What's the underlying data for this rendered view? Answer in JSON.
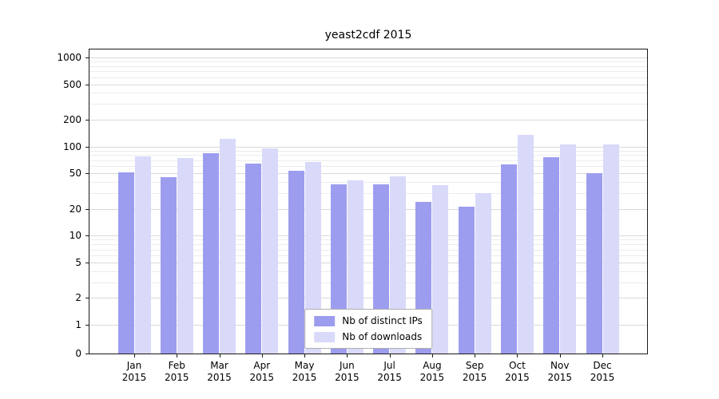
{
  "chart_data": {
    "type": "bar",
    "title": "yeast2cdf 2015",
    "scale": "log",
    "grid": true,
    "legend_position": "lower center",
    "categories": [
      "Jan",
      "Feb",
      "Mar",
      "Apr",
      "May",
      "Jun",
      "Jul",
      "Aug",
      "Sep",
      "Oct",
      "Nov",
      "Dec"
    ],
    "x_sublabel": "2015",
    "y_ticks": [
      0,
      1,
      2,
      5,
      10,
      20,
      50,
      100,
      200,
      500,
      1000
    ],
    "ylim": [
      0,
      1200
    ],
    "series": [
      {
        "name": "Nb of distinct IPs",
        "color": "#9d9df0",
        "values": [
          51,
          45,
          85,
          65,
          54,
          38,
          38,
          24,
          21,
          63,
          76,
          50
        ]
      },
      {
        "name": "Nb of downloads",
        "color": "#d9d9f9",
        "values": [
          78,
          75,
          122,
          95,
          67,
          42,
          46,
          37,
          30,
          135,
          106,
          106
        ]
      }
    ]
  }
}
